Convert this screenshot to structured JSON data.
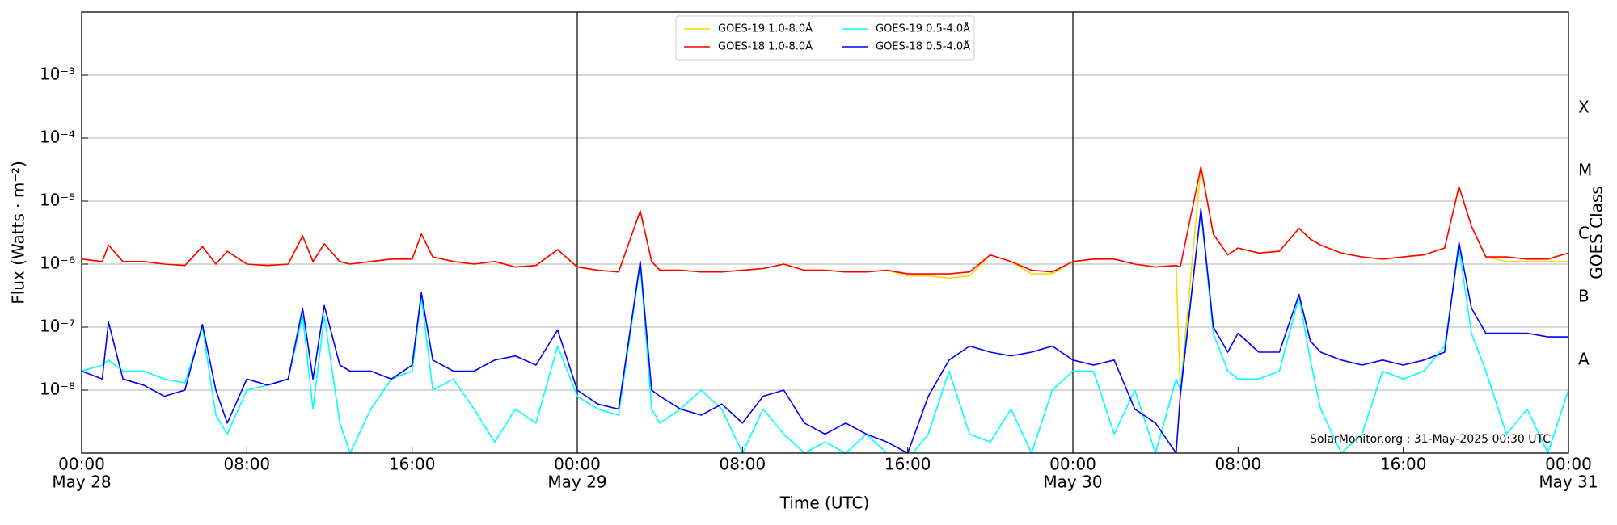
{
  "chart_data": {
    "type": "line",
    "xlabel": "Time (UTC)",
    "ylabel": "Flux (Watts · m⁻²)",
    "y2label": "GOES Class",
    "annotation": "SolarMonitor.org : 31-May-2025 00:30 UTC",
    "log_y": true,
    "grid": true,
    "legend": "top-center",
    "xlim": [
      0,
      72
    ],
    "ylim": [
      1e-09,
      0.01
    ],
    "y2lim": [
      1e-09,
      0.01
    ],
    "xticks": [
      {
        "value": 0,
        "label": [
          "00:00",
          "May 28"
        ]
      },
      {
        "value": 8,
        "label": [
          "08:00",
          ""
        ]
      },
      {
        "value": 16,
        "label": [
          "16:00",
          ""
        ]
      },
      {
        "value": 24,
        "label": [
          "00:00",
          "May 29"
        ]
      },
      {
        "value": 32,
        "label": [
          "08:00",
          ""
        ]
      },
      {
        "value": 40,
        "label": [
          "16:00",
          ""
        ]
      },
      {
        "value": 48,
        "label": [
          "00:00",
          "May 30"
        ]
      },
      {
        "value": 56,
        "label": [
          "08:00",
          ""
        ]
      },
      {
        "value": 64,
        "label": [
          "16:00",
          ""
        ]
      },
      {
        "value": 72,
        "label": [
          "00:00",
          "May 31"
        ]
      }
    ],
    "yticks": [
      {
        "value": 1e-08,
        "label": "10⁻⁸"
      },
      {
        "value": 1e-07,
        "label": "10⁻⁷"
      },
      {
        "value": 1e-06,
        "label": "10⁻⁶"
      },
      {
        "value": 1e-05,
        "label": "10⁻⁵"
      },
      {
        "value": 0.0001,
        "label": "10⁻⁴"
      },
      {
        "value": 0.001,
        "label": "10⁻³"
      }
    ],
    "y2ticks": [
      {
        "value": 3e-08,
        "label": "A"
      },
      {
        "value": 3e-07,
        "label": "B"
      },
      {
        "value": 3e-06,
        "label": "C"
      },
      {
        "value": 3e-05,
        "label": "M"
      },
      {
        "value": 0.0003,
        "label": "X"
      }
    ],
    "day_lines": [
      24,
      48
    ],
    "x": [
      0,
      1,
      1.3,
      2,
      3,
      4,
      5,
      5.85,
      6.5,
      7.05,
      8,
      9,
      10,
      10.7,
      11.2,
      11.75,
      12.5,
      13,
      14,
      15,
      16,
      16.45,
      17,
      18,
      19,
      20,
      21,
      22,
      23.05,
      24,
      25,
      26,
      27.05,
      27.6,
      28,
      29,
      30,
      31,
      32,
      33,
      34,
      35,
      36,
      37,
      38,
      39,
      40,
      41,
      42,
      43,
      44,
      45,
      46,
      47,
      48,
      49,
      50,
      51,
      52,
      53,
      53.2,
      54.2,
      54.8,
      55.5,
      56,
      57,
      58,
      58.95,
      59.5,
      60,
      61,
      62,
      63,
      64,
      65,
      66,
      66.7,
      67.3,
      68,
      69,
      70,
      71,
      72
    ],
    "series": [
      {
        "name": "GOES-19 1.0-8.0Å",
        "color": "#ffd700",
        "values": [
          1.2e-06,
          1.1e-06,
          2e-06,
          1.1e-06,
          1.1e-06,
          1e-06,
          9.5e-07,
          1.9e-06,
          1e-06,
          1.6e-06,
          1e-06,
          9.5e-07,
          1e-06,
          2.8e-06,
          1.1e-06,
          2.1e-06,
          1.1e-06,
          1e-06,
          1.1e-06,
          1.2e-06,
          1.2e-06,
          3e-06,
          1.3e-06,
          1.1e-06,
          1e-06,
          1.1e-06,
          9e-07,
          9.5e-07,
          1.7e-06,
          9e-07,
          8e-07,
          7.5e-07,
          7e-06,
          1.1e-06,
          8e-07,
          8e-07,
          7.5e-07,
          7.5e-07,
          8e-07,
          8.5e-07,
          1e-06,
          8e-07,
          8e-07,
          7.5e-07,
          7.5e-07,
          8e-07,
          6.5e-07,
          6.5e-07,
          6e-07,
          6.5e-07,
          1.4e-06,
          1.1e-06,
          7e-07,
          7e-07,
          1.1e-06,
          1.2e-06,
          1.2e-06,
          1e-06,
          9e-07,
          9.5e-07,
          1e-08,
          3.5e-05,
          3e-06,
          1.4e-06,
          1.8e-06,
          1.5e-06,
          1.6e-06,
          3.7e-06,
          2.5e-06,
          2e-06,
          1.5e-06,
          1.3e-06,
          1.2e-06,
          1.3e-06,
          1.4e-06,
          1.8e-06,
          1.7e-05,
          4e-06,
          1.3e-06,
          1.1e-06,
          1.1e-06,
          1.1e-06,
          1.1e-06
        ]
      },
      {
        "name": "GOES-18 1.0-8.0Å",
        "color": "#ff0000",
        "values": [
          1.2e-06,
          1.1e-06,
          2e-06,
          1.1e-06,
          1.1e-06,
          1e-06,
          9.5e-07,
          1.9e-06,
          1e-06,
          1.6e-06,
          1e-06,
          9.5e-07,
          1e-06,
          2.8e-06,
          1.1e-06,
          2.1e-06,
          1.1e-06,
          1e-06,
          1.1e-06,
          1.2e-06,
          1.2e-06,
          3e-06,
          1.3e-06,
          1.1e-06,
          1e-06,
          1.1e-06,
          9e-07,
          9.5e-07,
          1.7e-06,
          9e-07,
          8e-07,
          7.5e-07,
          7e-06,
          1.1e-06,
          8e-07,
          8e-07,
          7.5e-07,
          7.5e-07,
          8e-07,
          8.5e-07,
          1e-06,
          8e-07,
          8e-07,
          7.5e-07,
          7.5e-07,
          8e-07,
          7e-07,
          7e-07,
          7e-07,
          7.5e-07,
          1.4e-06,
          1.1e-06,
          8e-07,
          7.5e-07,
          1.1e-06,
          1.2e-06,
          1.2e-06,
          1e-06,
          9e-07,
          9.5e-07,
          9e-07,
          3.5e-05,
          3e-06,
          1.4e-06,
          1.8e-06,
          1.5e-06,
          1.6e-06,
          3.7e-06,
          2.5e-06,
          2e-06,
          1.5e-06,
          1.3e-06,
          1.2e-06,
          1.3e-06,
          1.4e-06,
          1.8e-06,
          1.7e-05,
          4e-06,
          1.3e-06,
          1.3e-06,
          1.2e-06,
          1.2e-06,
          1.5e-06
        ]
      },
      {
        "name": "GOES-19 0.5-4.0Å",
        "color": "#00ffff",
        "values": [
          2e-08,
          2.5e-08,
          3e-08,
          2e-08,
          2e-08,
          1.5e-08,
          1.3e-08,
          1e-07,
          4e-09,
          2e-09,
          1e-08,
          1.2e-08,
          1.5e-08,
          1.5e-07,
          5e-09,
          1.5e-07,
          3e-09,
          1e-09,
          5e-09,
          1.5e-08,
          2e-08,
          3e-07,
          1e-08,
          1.5e-08,
          5e-09,
          1.5e-09,
          5e-09,
          3e-09,
          5e-08,
          8e-09,
          5e-09,
          4e-09,
          1e-06,
          5e-09,
          3e-09,
          5e-09,
          1e-08,
          5e-09,
          1e-09,
          5e-09,
          2e-09,
          1e-09,
          1.5e-09,
          1e-09,
          2e-09,
          1e-09,
          8e-10,
          2e-09,
          2e-08,
          2e-09,
          1.5e-09,
          5e-09,
          1e-09,
          1e-08,
          2e-08,
          2e-08,
          2e-09,
          1e-08,
          1e-09,
          1.5e-08,
          1e-08,
          7e-06,
          8e-08,
          2e-08,
          1.5e-08,
          1.5e-08,
          2e-08,
          3e-07,
          3e-08,
          5e-09,
          1e-09,
          2e-09,
          2e-08,
          1.5e-08,
          2e-08,
          5e-08,
          1.8e-06,
          8e-08,
          2e-08,
          2e-09,
          5e-09,
          1e-09,
          1e-08
        ]
      },
      {
        "name": "GOES-18 0.5-4.0Å",
        "color": "#0000ff",
        "values": [
          2e-08,
          1.5e-08,
          1.2e-07,
          1.5e-08,
          1.2e-08,
          8e-09,
          1e-08,
          1.1e-07,
          1e-08,
          3e-09,
          1.5e-08,
          1.2e-08,
          1.5e-08,
          2e-07,
          1.5e-08,
          2.2e-07,
          2.5e-08,
          2e-08,
          2e-08,
          1.5e-08,
          2.5e-08,
          3.5e-07,
          3e-08,
          2e-08,
          2e-08,
          3e-08,
          3.5e-08,
          2.5e-08,
          9e-08,
          1e-08,
          6e-09,
          5e-09,
          1.1e-06,
          1e-08,
          8e-09,
          5e-09,
          4e-09,
          6e-09,
          3e-09,
          8e-09,
          1e-08,
          3e-09,
          2e-09,
          3e-09,
          2e-09,
          1.5e-09,
          1e-09,
          8e-09,
          3e-08,
          5e-08,
          4e-08,
          3.5e-08,
          4e-08,
          5e-08,
          3e-08,
          2.5e-08,
          3e-08,
          5e-09,
          3e-09,
          1e-09,
          8e-09,
          7.5e-06,
          1e-07,
          4e-08,
          8e-08,
          4e-08,
          4e-08,
          3.3e-07,
          6e-08,
          4e-08,
          3e-08,
          2.5e-08,
          3e-08,
          2.5e-08,
          3e-08,
          4e-08,
          2.2e-06,
          2e-07,
          8e-08,
          8e-08,
          8e-08,
          7e-08,
          7e-08
        ]
      }
    ]
  }
}
